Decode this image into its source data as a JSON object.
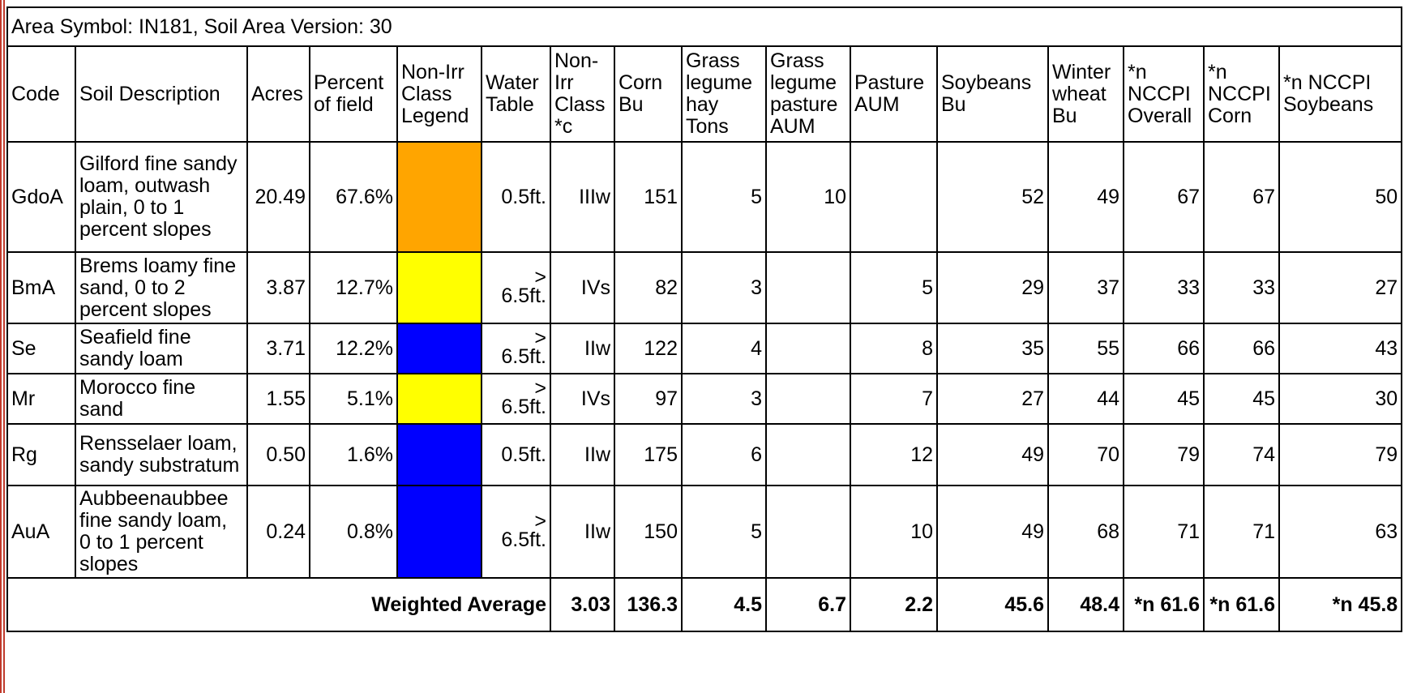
{
  "area_caption": "Area Symbol: IN181, Soil Area Version: 30",
  "headers": [
    "Code",
    "Soil Description",
    "Acres",
    "Percent of field",
    "Non-Irr Class Legend",
    "Water Table",
    "Non-Irr Class *c",
    "Corn Bu",
    "Grass legume hay Tons",
    "Grass legume pasture AUM",
    "Pasture AUM",
    "Soybeans Bu",
    "Winter wheat Bu",
    "*n NCCPI Overall",
    "*n NCCPI Corn",
    "*n NCCPI Soybeans"
  ],
  "rows": [
    {
      "code": "GdoA",
      "desc": "Gilford fine sandy loam, outwash plain, 0 to 1 percent slopes",
      "acres": "20.49",
      "pct": "67.6%",
      "legend_color": "#FFA500",
      "water_gt": "",
      "water": "0.5ft.",
      "cls": "IIIw",
      "corn": "151",
      "hay": "5",
      "glpasture": "10",
      "pasture": "",
      "soy": "52",
      "wheat": "49",
      "nccpi_o": "67",
      "nccpi_c": "67",
      "nccpi_s": "50"
    },
    {
      "code": "BmA",
      "desc": "Brems loamy fine sand, 0 to 2 percent slopes",
      "acres": "3.87",
      "pct": "12.7%",
      "legend_color": "#FFFF00",
      "water_gt": ">",
      "water": "6.5ft.",
      "cls": "IVs",
      "corn": "82",
      "hay": "3",
      "glpasture": "",
      "pasture": "5",
      "soy": "29",
      "wheat": "37",
      "nccpi_o": "33",
      "nccpi_c": "33",
      "nccpi_s": "27"
    },
    {
      "code": "Se",
      "desc": "Seafield fine sandy loam",
      "acres": "3.71",
      "pct": "12.2%",
      "legend_color": "#0000FF",
      "water_gt": ">",
      "water": "6.5ft.",
      "cls": "IIw",
      "corn": "122",
      "hay": "4",
      "glpasture": "",
      "pasture": "8",
      "soy": "35",
      "wheat": "55",
      "nccpi_o": "66",
      "nccpi_c": "66",
      "nccpi_s": "43"
    },
    {
      "code": "Mr",
      "desc": "Morocco fine sand",
      "acres": "1.55",
      "pct": "5.1%",
      "legend_color": "#FFFF00",
      "water_gt": ">",
      "water": "6.5ft.",
      "cls": "IVs",
      "corn": "97",
      "hay": "3",
      "glpasture": "",
      "pasture": "7",
      "soy": "27",
      "wheat": "44",
      "nccpi_o": "45",
      "nccpi_c": "45",
      "nccpi_s": "30"
    },
    {
      "code": "Rg",
      "desc": "Rensselaer loam, sandy substratum",
      "acres": "0.50",
      "pct": "1.6%",
      "legend_color": "#0000FF",
      "water_gt": "",
      "water": "0.5ft.",
      "cls": "IIw",
      "corn": "175",
      "hay": "6",
      "glpasture": "",
      "pasture": "12",
      "soy": "49",
      "wheat": "70",
      "nccpi_o": "79",
      "nccpi_c": "74",
      "nccpi_s": "79"
    },
    {
      "code": "AuA",
      "desc": "Aubbeenaubbee fine sandy loam, 0 to 1 percent slopes",
      "acres": "0.24",
      "pct": "0.8%",
      "legend_color": "#0000FF",
      "water_gt": ">",
      "water": "6.5ft.",
      "cls": "IIw",
      "corn": "150",
      "hay": "5",
      "glpasture": "",
      "pasture": "10",
      "soy": "49",
      "wheat": "68",
      "nccpi_o": "71",
      "nccpi_c": "71",
      "nccpi_s": "63"
    }
  ],
  "weighted": {
    "label": "Weighted Average",
    "cls": "3.03",
    "corn": "136.3",
    "hay": "4.5",
    "glpasture": "6.7",
    "pasture": "2.2",
    "soy": "45.6",
    "wheat": "48.4",
    "nccpi_o": "*n 61.6",
    "nccpi_c": "*n 61.6",
    "nccpi_s": "*n 45.8"
  }
}
